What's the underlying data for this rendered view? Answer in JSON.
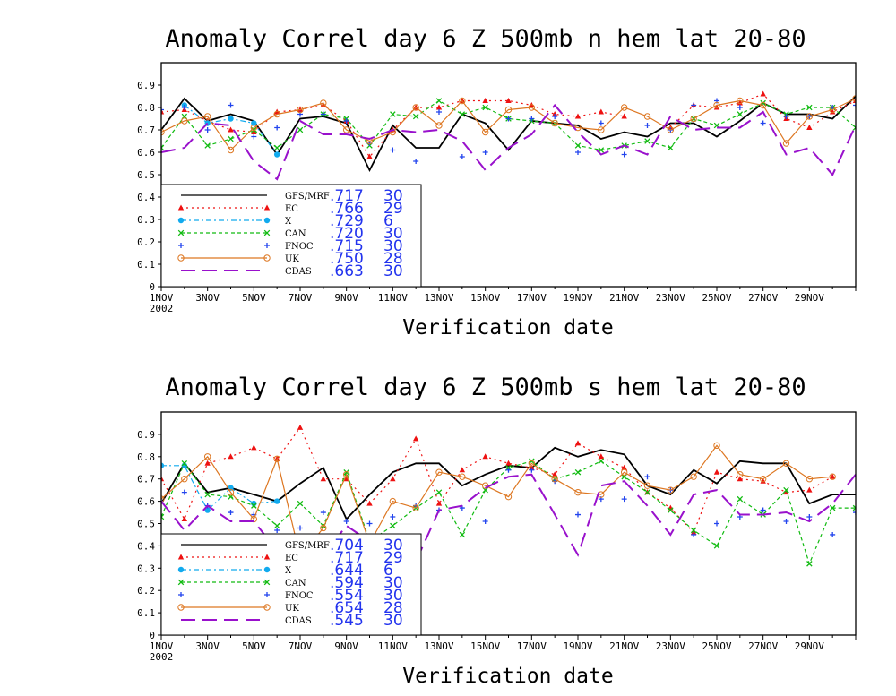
{
  "chart_data": [
    {
      "type": "line",
      "title": "Anomaly Correl  day 6  Z 500mb  n hem  lat 20-80",
      "xlabel": "Verification date",
      "ylabel": "",
      "ylim": [
        0,
        1
      ],
      "yticks": [
        "0",
        "0.1",
        "0.2",
        "0.3",
        "0.4",
        "0.5",
        "0.6",
        "0.7",
        "0.8",
        "0.9"
      ],
      "xticks": [
        "1NOV",
        "3NOV",
        "5NOV",
        "7NOV",
        "9NOV",
        "11NOV",
        "13NOV",
        "15NOV",
        "17NOV",
        "19NOV",
        "21NOV",
        "23NOV",
        "25NOV",
        "27NOV",
        "29NOV"
      ],
      "xtick_year": "2002",
      "x": [
        1,
        2,
        3,
        4,
        5,
        6,
        7,
        8,
        9,
        10,
        11,
        12,
        13,
        14,
        15,
        16,
        17,
        18,
        19,
        20,
        21,
        22,
        23,
        24,
        25,
        26,
        27,
        28,
        29,
        30,
        31
      ],
      "series": [
        {
          "name": "GFS/MRF",
          "stat_mean": ".717",
          "stat_count": "30",
          "color": "#000000",
          "style": "solid",
          "marker": "none",
          "values": [
            0.7,
            0.84,
            0.74,
            0.77,
            0.74,
            0.59,
            0.75,
            0.76,
            0.73,
            0.52,
            0.72,
            0.62,
            0.62,
            0.77,
            0.73,
            0.61,
            0.74,
            0.73,
            0.72,
            0.66,
            0.69,
            0.67,
            0.73,
            0.73,
            0.67,
            0.74,
            0.82,
            0.77,
            0.77,
            0.75,
            0.85
          ]
        },
        {
          "name": "EC",
          "stat_mean": ".766",
          "stat_count": "29",
          "color": "#ee1111",
          "style": "dotted",
          "marker": "triangle",
          "values": [
            0.78,
            0.79,
            0.74,
            0.7,
            0.69,
            0.78,
            0.79,
            0.81,
            0.74,
            0.58,
            0.7,
            0.8,
            0.8,
            0.83,
            0.83,
            0.83,
            0.81,
            0.77,
            0.76,
            0.78,
            0.76,
            null,
            0.71,
            0.81,
            0.8,
            0.82,
            0.86,
            0.75,
            0.71,
            0.78,
            0.83
          ]
        },
        {
          "name": "X",
          "stat_mean": ".729",
          "stat_count": "6",
          "color": "#11aaee",
          "style": "dashdot",
          "marker": "circle",
          "values": [
            null,
            0.81,
            0.73,
            0.75,
            0.73,
            0.59,
            null,
            null,
            null,
            null,
            null,
            null,
            null,
            null,
            null,
            null,
            null,
            null,
            null,
            null,
            null,
            null,
            null,
            null,
            null,
            null,
            null,
            null,
            null,
            null,
            null
          ]
        },
        {
          "name": "CAN",
          "stat_mean": ".720",
          "stat_count": "30",
          "color": "#11bb11",
          "style": "dashed",
          "marker": "x",
          "values": [
            0.62,
            0.76,
            0.63,
            0.66,
            0.7,
            0.62,
            0.7,
            0.77,
            0.75,
            0.63,
            0.77,
            0.76,
            0.83,
            0.77,
            0.8,
            0.75,
            0.74,
            0.73,
            0.63,
            0.61,
            0.63,
            0.65,
            0.62,
            0.75,
            0.72,
            0.77,
            0.82,
            0.77,
            0.8,
            0.8,
            0.71
          ]
        },
        {
          "name": "FNOC",
          "stat_mean": ".715",
          "stat_count": "30",
          "color": "#2244ee",
          "style": "none",
          "marker": "plus",
          "values": [
            0.79,
            0.8,
            0.7,
            0.81,
            0.67,
            0.71,
            0.77,
            0.77,
            0.74,
            0.64,
            0.61,
            0.56,
            0.78,
            0.58,
            0.6,
            0.75,
            0.75,
            0.76,
            0.6,
            0.73,
            0.59,
            0.72,
            0.7,
            0.81,
            0.83,
            0.8,
            0.73,
            0.76,
            0.76,
            0.8,
            0.81
          ]
        },
        {
          "name": "UK",
          "stat_mean": ".750",
          "stat_count": "28",
          "color": "#dd7722",
          "style": "solid",
          "marker": "circle-open",
          "values": [
            0.69,
            0.74,
            0.76,
            0.61,
            0.71,
            0.77,
            0.79,
            0.82,
            0.7,
            0.65,
            0.69,
            0.8,
            0.72,
            0.83,
            0.69,
            0.79,
            0.8,
            0.73,
            0.71,
            0.7,
            0.8,
            0.76,
            0.7,
            0.75,
            0.81,
            0.83,
            0.81,
            0.64,
            0.76,
            0.79,
            0.84
          ]
        },
        {
          "name": "CDAS",
          "stat_mean": ".663",
          "stat_count": "30",
          "color": "#9911cc",
          "style": "longdash",
          "marker": "none",
          "values": [
            0.6,
            0.62,
            0.73,
            0.72,
            0.56,
            0.48,
            0.74,
            0.68,
            0.68,
            0.66,
            0.7,
            0.69,
            0.7,
            0.65,
            0.52,
            0.62,
            0.68,
            0.81,
            0.69,
            0.59,
            0.63,
            0.59,
            0.76,
            0.7,
            0.71,
            0.71,
            0.78,
            0.59,
            0.62,
            0.5,
            0.72
          ]
        }
      ]
    },
    {
      "type": "line",
      "title": "Anomaly Correl  day 6  Z 500mb  s hem  lat 20-80",
      "xlabel": "Verification date",
      "ylabel": "",
      "ylim": [
        0,
        1
      ],
      "yticks": [
        "0",
        "0.1",
        "0.2",
        "0.3",
        "0.4",
        "0.5",
        "0.6",
        "0.7",
        "0.8",
        "0.9"
      ],
      "xticks": [
        "1NOV",
        "3NOV",
        "5NOV",
        "7NOV",
        "9NOV",
        "11NOV",
        "13NOV",
        "15NOV",
        "17NOV",
        "19NOV",
        "21NOV",
        "23NOV",
        "25NOV",
        "27NOV",
        "29NOV"
      ],
      "xtick_year": "2002",
      "x": [
        1,
        2,
        3,
        4,
        5,
        6,
        7,
        8,
        9,
        10,
        11,
        12,
        13,
        14,
        15,
        16,
        17,
        18,
        19,
        20,
        21,
        22,
        23,
        24,
        25,
        26,
        27,
        28,
        29,
        30,
        31
      ],
      "series": [
        {
          "name": "GFS/MRF",
          "stat_mean": ".704",
          "stat_count": "30",
          "color": "#000000",
          "style": "solid",
          "marker": "none",
          "values": [
            0.59,
            0.77,
            0.64,
            0.66,
            0.63,
            0.6,
            0.68,
            0.75,
            0.52,
            0.63,
            0.73,
            0.77,
            0.77,
            0.67,
            0.72,
            0.76,
            0.75,
            0.84,
            0.8,
            0.83,
            0.81,
            0.67,
            0.63,
            0.74,
            0.68,
            0.78,
            0.77,
            0.77,
            0.59,
            0.63,
            0.63
          ]
        },
        {
          "name": "EC",
          "stat_mean": ".717",
          "stat_count": "29",
          "color": "#ee1111",
          "style": "dotted",
          "marker": "triangle",
          "values": [
            0.7,
            0.52,
            0.77,
            0.8,
            0.84,
            0.79,
            0.93,
            0.7,
            0.7,
            0.59,
            0.7,
            0.88,
            0.59,
            0.74,
            0.8,
            0.77,
            0.75,
            0.72,
            0.86,
            0.8,
            0.75,
            0.64,
            0.57,
            0.46,
            0.73,
            0.7,
            0.69,
            0.64,
            0.65,
            0.71,
            null
          ]
        },
        {
          "name": "X",
          "stat_mean": ".644",
          "stat_count": "6",
          "color": "#11aaee",
          "style": "dashdot",
          "marker": "circle",
          "values": [
            0.76,
            0.76,
            0.56,
            0.66,
            0.59,
            0.6,
            null,
            null,
            null,
            null,
            null,
            null,
            null,
            null,
            null,
            null,
            null,
            null,
            null,
            null,
            null,
            null,
            null,
            null,
            null,
            null,
            null,
            null,
            null,
            null,
            null
          ]
        },
        {
          "name": "CAN",
          "stat_mean": ".594",
          "stat_count": "30",
          "color": "#11bb11",
          "style": "dashed",
          "marker": "x",
          "values": [
            0.53,
            0.77,
            0.63,
            0.62,
            0.58,
            0.49,
            0.59,
            0.49,
            0.73,
            0.42,
            0.49,
            0.57,
            0.64,
            0.45,
            0.65,
            0.75,
            0.78,
            0.7,
            0.73,
            0.78,
            0.71,
            0.64,
            0.56,
            0.47,
            0.4,
            0.61,
            0.54,
            0.65,
            0.32,
            0.57,
            0.57
          ]
        },
        {
          "name": "FNOC",
          "stat_mean": ".554",
          "stat_count": "30",
          "color": "#2244ee",
          "style": "none",
          "marker": "plus",
          "values": [
            0.6,
            0.64,
            0.58,
            0.55,
            0.54,
            0.47,
            0.48,
            0.55,
            0.51,
            0.5,
            0.53,
            0.58,
            0.56,
            0.57,
            0.51,
            0.74,
            0.74,
            0.69,
            0.54,
            0.61,
            0.61,
            0.71,
            0.65,
            0.45,
            0.5,
            0.53,
            0.56,
            0.51,
            0.53,
            0.45,
            0.55
          ]
        },
        {
          "name": "UK",
          "stat_mean": ".654",
          "stat_count": "28",
          "color": "#dd7722",
          "style": "solid",
          "marker": "circle-open",
          "values": [
            0.61,
            0.7,
            0.8,
            0.64,
            0.52,
            0.79,
            0.35,
            0.48,
            0.72,
            0.41,
            0.6,
            0.57,
            0.73,
            0.71,
            0.67,
            0.62,
            0.77,
            0.7,
            0.64,
            0.63,
            0.73,
            0.67,
            0.65,
            0.71,
            0.85,
            0.72,
            0.7,
            0.77,
            0.7,
            0.71,
            null
          ]
        },
        {
          "name": "CDAS",
          "stat_mean": ".545",
          "stat_count": "30",
          "color": "#9911cc",
          "style": "longdash",
          "marker": "none",
          "values": [
            0.6,
            0.47,
            0.58,
            0.51,
            0.51,
            0.38,
            0.28,
            0.36,
            0.49,
            0.42,
            0.44,
            0.33,
            0.56,
            0.58,
            0.66,
            0.71,
            0.72,
            0.54,
            0.36,
            0.67,
            0.69,
            0.58,
            0.45,
            0.63,
            0.65,
            0.54,
            0.54,
            0.55,
            0.51,
            0.59,
            0.72
          ]
        }
      ]
    }
  ]
}
